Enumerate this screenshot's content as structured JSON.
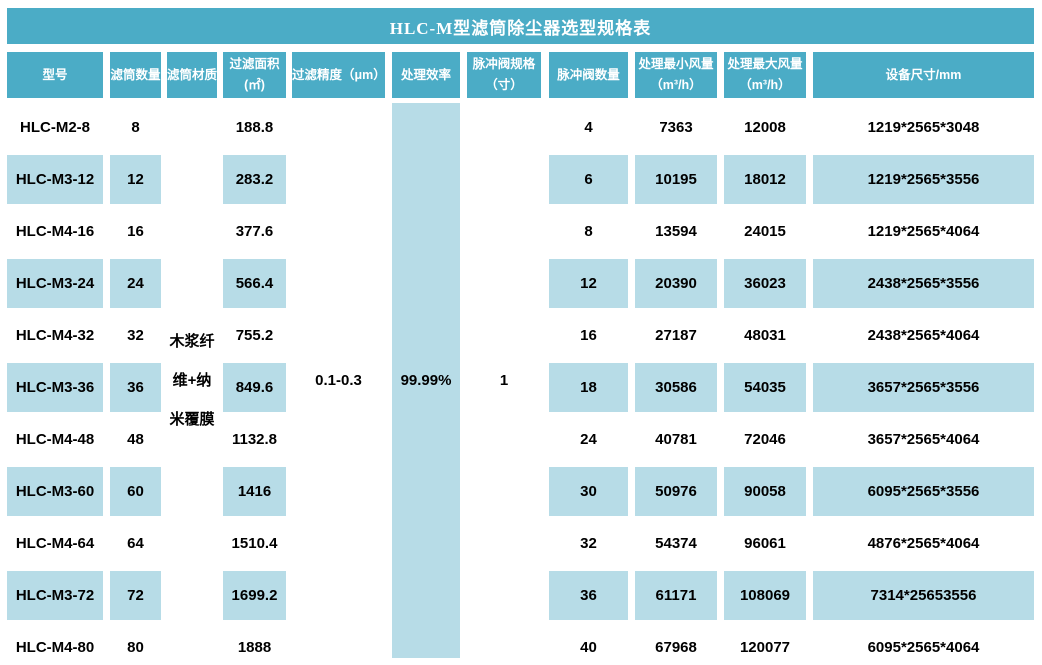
{
  "title": "HLC-M型滤筒除尘器选型规格表",
  "colors": {
    "teal": "#4BACC6",
    "light_blue": "#B7DCE7",
    "header_text": "#FFFFFF",
    "body_text": "#000000"
  },
  "columns": {
    "model": "型号",
    "qty": "滤筒数量",
    "material": "滤筒材质",
    "area": "过滤面积\n(㎡)",
    "precision": "过滤精度（μm）",
    "efficiency": "处理效率",
    "valve_spec": "脉冲阀规格\n（寸）",
    "valve_qty": "脉冲阀数量",
    "min_flow": "处理最小风量\n（m³/h）",
    "max_flow": "处理最大风量\n（m³/h）",
    "dims": "设备尺寸/mm"
  },
  "merged_cells": {
    "material": "木浆纤\n维+纳\n米覆膜",
    "precision": "0.1-0.3",
    "efficiency": "99.99%",
    "valve_spec": "1"
  },
  "rows": [
    {
      "model": "HLC-M2-8",
      "qty": "8",
      "area": "188.8",
      "valve_qty": "4",
      "min_flow": "7363",
      "max_flow": "12008",
      "dims": "1219*2565*3048"
    },
    {
      "model": "HLC-M3-12",
      "qty": "12",
      "area": "283.2",
      "valve_qty": "6",
      "min_flow": "10195",
      "max_flow": "18012",
      "dims": "1219*2565*3556"
    },
    {
      "model": "HLC-M4-16",
      "qty": "16",
      "area": "377.6",
      "valve_qty": "8",
      "min_flow": "13594",
      "max_flow": "24015",
      "dims": "1219*2565*4064"
    },
    {
      "model": "HLC-M3-24",
      "qty": "24",
      "area": "566.4",
      "valve_qty": "12",
      "min_flow": "20390",
      "max_flow": "36023",
      "dims": "2438*2565*3556"
    },
    {
      "model": "HLC-M4-32",
      "qty": "32",
      "area": "755.2",
      "valve_qty": "16",
      "min_flow": "27187",
      "max_flow": "48031",
      "dims": "2438*2565*4064"
    },
    {
      "model": "HLC-M3-36",
      "qty": "36",
      "area": "849.6",
      "valve_qty": "18",
      "min_flow": "30586",
      "max_flow": "54035",
      "dims": "3657*2565*3556"
    },
    {
      "model": "HLC-M4-48",
      "qty": "48",
      "area": "1132.8",
      "valve_qty": "24",
      "min_flow": "40781",
      "max_flow": "72046",
      "dims": "3657*2565*4064"
    },
    {
      "model": "HLC-M3-60",
      "qty": "60",
      "area": "1416",
      "valve_qty": "30",
      "min_flow": "50976",
      "max_flow": "90058",
      "dims": "6095*2565*3556"
    },
    {
      "model": "HLC-M4-64",
      "qty": "64",
      "area": "1510.4",
      "valve_qty": "32",
      "min_flow": "54374",
      "max_flow": "96061",
      "dims": "4876*2565*4064"
    },
    {
      "model": "HLC-M3-72",
      "qty": "72",
      "area": "1699.2",
      "valve_qty": "36",
      "min_flow": "61171",
      "max_flow": "108069",
      "dims": "7314*25653556"
    },
    {
      "model": "HLC-M4-80",
      "qty": "80",
      "area": "1888",
      "valve_qty": "40",
      "min_flow": "67968",
      "max_flow": "120077",
      "dims": "6095*2565*4064"
    }
  ]
}
